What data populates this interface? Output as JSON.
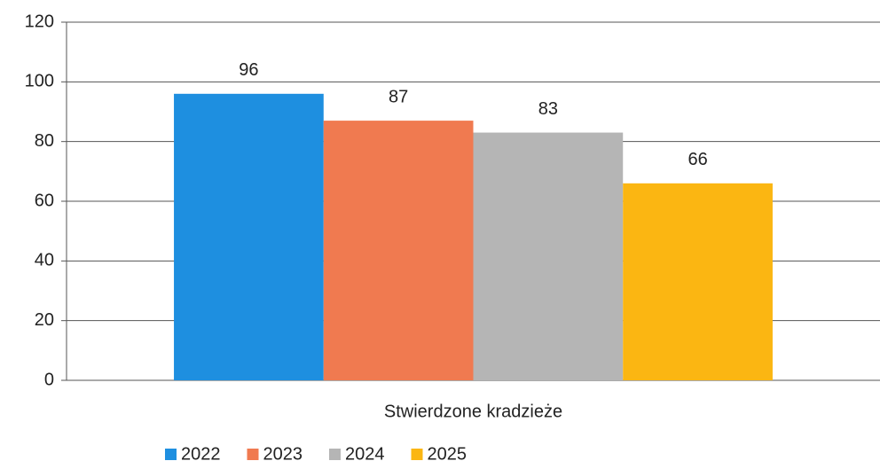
{
  "chart_data": {
    "type": "bar",
    "categories": [
      "Stwierdzone kradzieże"
    ],
    "series": [
      {
        "name": "2022",
        "color": "#1e8fe0",
        "values": [
          96
        ]
      },
      {
        "name": "2023",
        "color": "#f07a50",
        "values": [
          87
        ]
      },
      {
        "name": "2024",
        "color": "#b5b5b5",
        "values": [
          83
        ]
      },
      {
        "name": "2025",
        "color": "#fbb612",
        "values": [
          66
        ]
      }
    ],
    "ylim": [
      0,
      120
    ],
    "yticks": [
      0,
      20,
      40,
      60,
      80,
      100,
      120
    ],
    "grid": true,
    "legend": "bottom"
  }
}
